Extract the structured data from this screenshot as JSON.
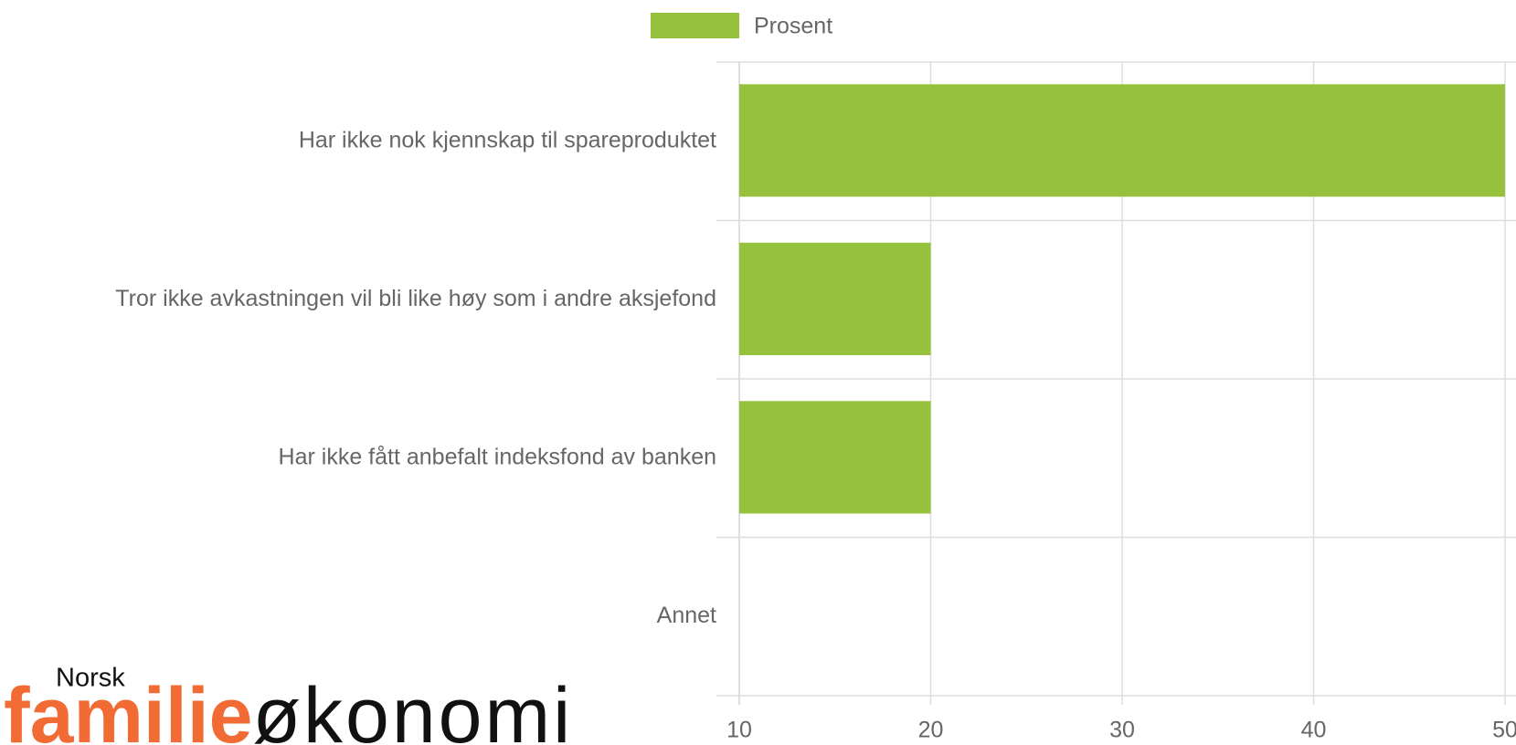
{
  "chart_data": {
    "type": "bar",
    "orientation": "horizontal",
    "categories": [
      "Har ikke nok kjennskap til spareproduktet",
      "Tror ikke avkastningen vil bli like høy som i andre aksjefond",
      "Har ikke fått anbefalt indeksfond av banken",
      "Annet"
    ],
    "series": [
      {
        "name": "Prosent",
        "color": "#95c13d",
        "values": [
          50,
          20,
          20,
          10
        ]
      }
    ],
    "xlim": [
      10,
      50
    ],
    "xticks": [
      10,
      20,
      30,
      40,
      50
    ],
    "grid": true,
    "legend": "top"
  },
  "logo": {
    "small": "Norsk",
    "bold": "familie",
    "light": "økonomi"
  }
}
